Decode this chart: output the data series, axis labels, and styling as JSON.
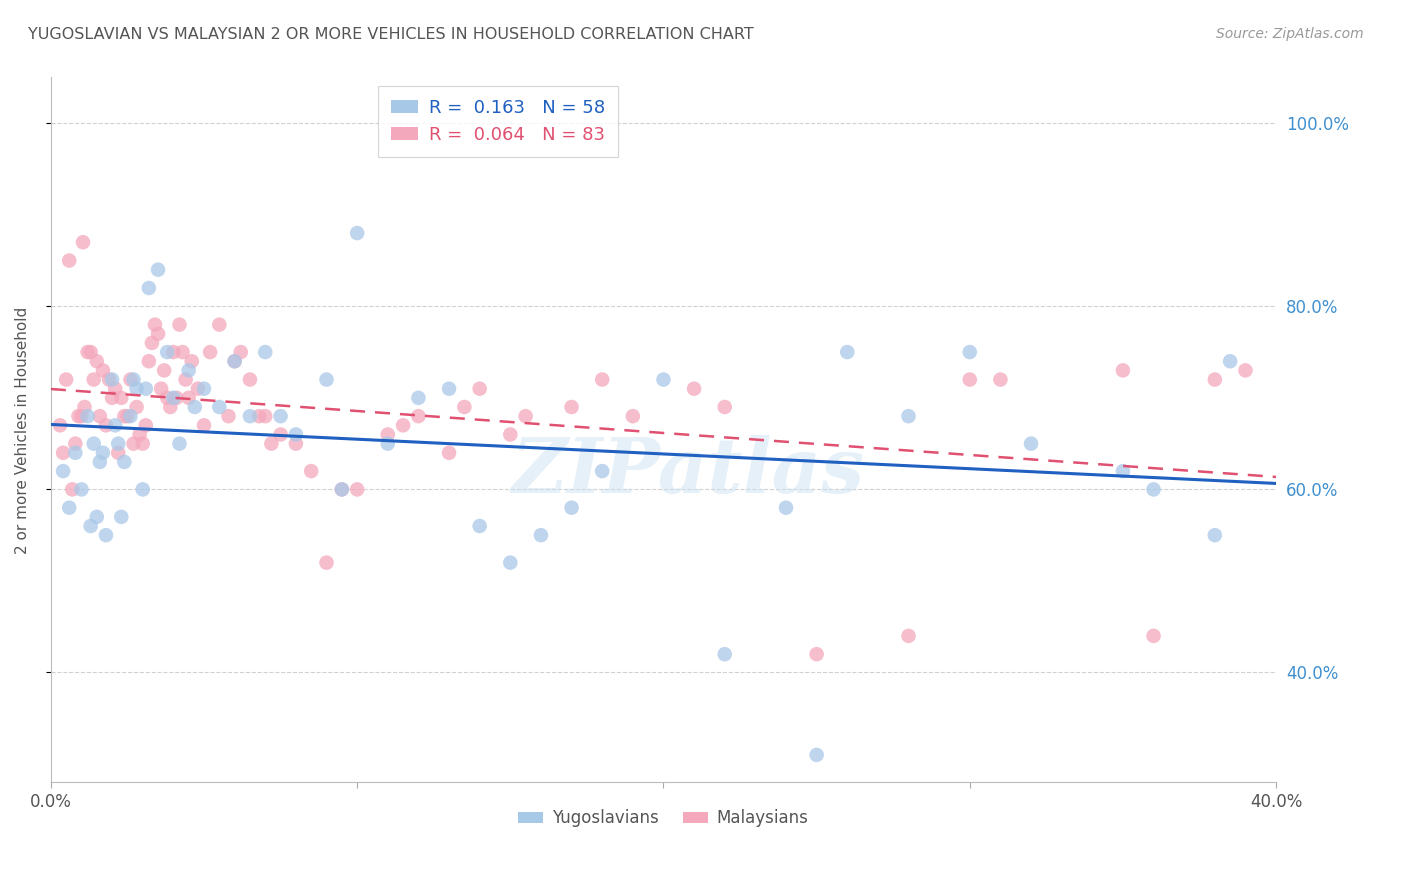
{
  "title": "YUGOSLAVIAN VS MALAYSIAN 2 OR MORE VEHICLES IN HOUSEHOLD CORRELATION CHART",
  "source": "Source: ZipAtlas.com",
  "ylabel": "2 or more Vehicles in Household",
  "watermark": "ZIPatlas",
  "legend_R_blue": "R =  0.163",
  "legend_N_blue": "N = 58",
  "legend_R_pink": "R =  0.064",
  "legend_N_pink": "N = 83",
  "blue_color": "#A8C8E8",
  "pink_color": "#F4A8BC",
  "blue_line_color": "#2060C0",
  "pink_line_color": "#E05070",
  "grid_color": "#CCCCCC",
  "title_color": "#555555",
  "right_tick_color": "#4090D0",
  "xlim": [
    0.0,
    40.0
  ],
  "ylim": [
    28.0,
    105.0
  ],
  "yticks": [
    40.0,
    60.0,
    80.0,
    100.0
  ],
  "blue_x": [
    0.4,
    0.6,
    0.8,
    1.0,
    1.2,
    1.4,
    1.5,
    1.6,
    1.8,
    2.0,
    2.1,
    2.2,
    2.4,
    2.6,
    2.8,
    3.0,
    3.2,
    3.5,
    3.8,
    4.0,
    4.2,
    4.5,
    5.0,
    5.5,
    6.0,
    6.5,
    7.0,
    7.5,
    8.0,
    9.0,
    10.0,
    11.0,
    12.0,
    13.0,
    14.0,
    15.0,
    16.0,
    17.0,
    18.0,
    20.0,
    22.0,
    24.0,
    25.0,
    26.0,
    28.0,
    30.0,
    32.0,
    35.0,
    36.0,
    38.0,
    38.5,
    1.3,
    1.7,
    2.3,
    2.7,
    3.1,
    4.7,
    9.5
  ],
  "blue_y": [
    62.0,
    58.0,
    64.0,
    60.0,
    68.0,
    65.0,
    57.0,
    63.0,
    55.0,
    72.0,
    67.0,
    65.0,
    63.0,
    68.0,
    71.0,
    60.0,
    82.0,
    84.0,
    75.0,
    70.0,
    65.0,
    73.0,
    71.0,
    69.0,
    74.0,
    68.0,
    75.0,
    68.0,
    66.0,
    72.0,
    88.0,
    65.0,
    70.0,
    71.0,
    56.0,
    52.0,
    55.0,
    58.0,
    62.0,
    72.0,
    42.0,
    58.0,
    31.0,
    75.0,
    68.0,
    75.0,
    65.0,
    62.0,
    60.0,
    55.0,
    74.0,
    56.0,
    64.0,
    57.0,
    72.0,
    71.0,
    69.0,
    60.0
  ],
  "pink_x": [
    0.3,
    0.4,
    0.5,
    0.6,
    0.7,
    0.8,
    0.9,
    1.0,
    1.1,
    1.2,
    1.3,
    1.4,
    1.5,
    1.6,
    1.7,
    1.8,
    1.9,
    2.0,
    2.1,
    2.2,
    2.3,
    2.4,
    2.5,
    2.6,
    2.7,
    2.8,
    2.9,
    3.0,
    3.1,
    3.2,
    3.3,
    3.4,
    3.5,
    3.6,
    3.7,
    3.8,
    3.9,
    4.0,
    4.1,
    4.2,
    4.3,
    4.4,
    4.5,
    4.6,
    4.8,
    5.0,
    5.2,
    5.5,
    5.8,
    6.0,
    6.2,
    6.5,
    6.8,
    7.0,
    7.2,
    7.5,
    8.0,
    8.5,
    9.0,
    9.5,
    10.0,
    11.0,
    11.5,
    12.0,
    13.0,
    13.5,
    14.0,
    15.0,
    15.5,
    17.0,
    18.0,
    19.0,
    21.0,
    22.0,
    25.0,
    28.0,
    30.0,
    31.0,
    35.0,
    36.0,
    38.0,
    39.0,
    1.05
  ],
  "pink_y": [
    67.0,
    64.0,
    72.0,
    85.0,
    60.0,
    65.0,
    68.0,
    68.0,
    69.0,
    75.0,
    75.0,
    72.0,
    74.0,
    68.0,
    73.0,
    67.0,
    72.0,
    70.0,
    71.0,
    64.0,
    70.0,
    68.0,
    68.0,
    72.0,
    65.0,
    69.0,
    66.0,
    65.0,
    67.0,
    74.0,
    76.0,
    78.0,
    77.0,
    71.0,
    73.0,
    70.0,
    69.0,
    75.0,
    70.0,
    78.0,
    75.0,
    72.0,
    70.0,
    74.0,
    71.0,
    67.0,
    75.0,
    78.0,
    68.0,
    74.0,
    75.0,
    72.0,
    68.0,
    68.0,
    65.0,
    66.0,
    65.0,
    62.0,
    52.0,
    60.0,
    60.0,
    66.0,
    67.0,
    68.0,
    64.0,
    69.0,
    71.0,
    66.0,
    68.0,
    69.0,
    72.0,
    68.0,
    71.0,
    69.0,
    42.0,
    44.0,
    72.0,
    72.0,
    73.0,
    44.0,
    72.0,
    73.0,
    87.0
  ]
}
